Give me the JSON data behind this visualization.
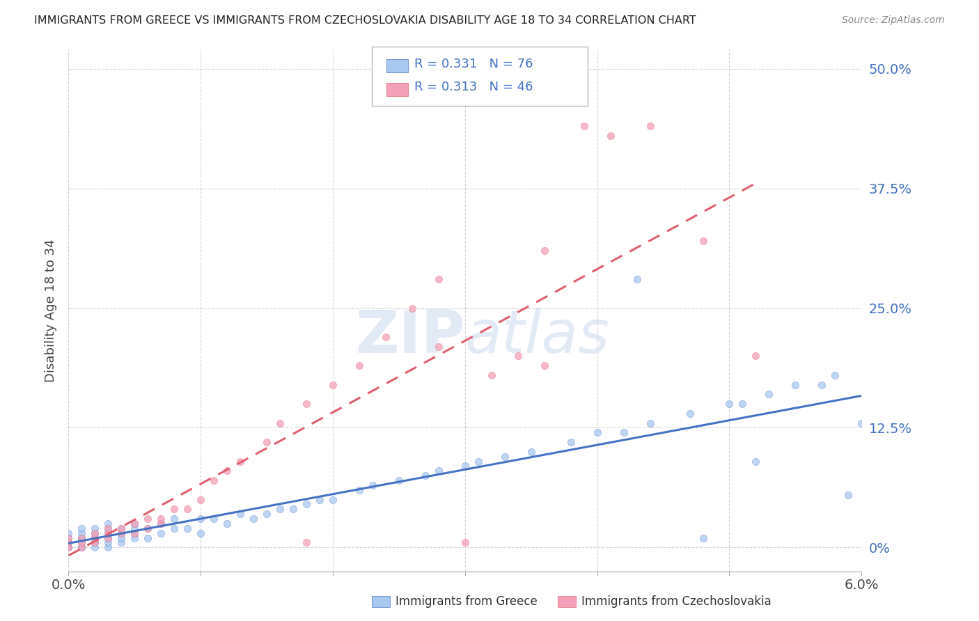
{
  "title": "IMMIGRANTS FROM GREECE VS IMMIGRANTS FROM CZECHOSLOVAKIA DISABILITY AGE 18 TO 34 CORRELATION CHART",
  "source": "Source: ZipAtlas.com",
  "ylabel": "Disability Age 18 to 34",
  "legend_label1": "Immigrants from Greece",
  "legend_label2": "Immigrants from Czechoslovakia",
  "R1": 0.331,
  "N1": 76,
  "R2": 0.313,
  "N2": 46,
  "color_blue": "#A8C8F0",
  "color_pink": "#F4A0B8",
  "color_blue_dark": "#4472C4",
  "color_pink_dark": "#E06070",
  "color_line_blue": "#4472C4",
  "color_line_pink": "#E06070",
  "ytick_labels": [
    "0%",
    "12.5%",
    "25.0%",
    "37.5%",
    "50.0%"
  ],
  "ytick_values": [
    0.0,
    0.125,
    0.25,
    0.375,
    0.5
  ],
  "xtick_values": [
    0.0,
    0.01,
    0.02,
    0.03,
    0.04,
    0.05,
    0.06
  ],
  "xmin": 0.0,
  "xmax": 0.06,
  "ymin": -0.025,
  "ymax": 0.52,
  "background_color": "#FFFFFF",
  "greece_x": [
    0.0,
    0.0,
    0.0,
    0.0,
    0.0,
    0.001,
    0.001,
    0.001,
    0.001,
    0.001,
    0.001,
    0.001,
    0.002,
    0.002,
    0.002,
    0.002,
    0.002,
    0.002,
    0.003,
    0.003,
    0.003,
    0.003,
    0.003,
    0.003,
    0.004,
    0.004,
    0.004,
    0.004,
    0.005,
    0.005,
    0.005,
    0.005,
    0.006,
    0.006,
    0.007,
    0.007,
    0.008,
    0.008,
    0.009,
    0.01,
    0.01,
    0.011,
    0.012,
    0.013,
    0.014,
    0.015,
    0.016,
    0.017,
    0.018,
    0.019,
    0.02,
    0.022,
    0.023,
    0.025,
    0.027,
    0.028,
    0.03,
    0.031,
    0.033,
    0.035,
    0.038,
    0.04,
    0.042,
    0.044,
    0.047,
    0.05,
    0.051,
    0.053,
    0.055,
    0.057,
    0.058,
    0.06,
    0.043,
    0.048,
    0.052,
    0.059
  ],
  "greece_y": [
    0.0,
    0.0,
    0.005,
    0.01,
    0.015,
    0.0,
    0.0,
    0.005,
    0.01,
    0.01,
    0.015,
    0.02,
    0.0,
    0.005,
    0.01,
    0.01,
    0.015,
    0.02,
    0.0,
    0.005,
    0.01,
    0.015,
    0.02,
    0.025,
    0.005,
    0.01,
    0.015,
    0.02,
    0.01,
    0.015,
    0.02,
    0.025,
    0.01,
    0.02,
    0.015,
    0.025,
    0.02,
    0.03,
    0.02,
    0.015,
    0.03,
    0.03,
    0.025,
    0.035,
    0.03,
    0.035,
    0.04,
    0.04,
    0.045,
    0.05,
    0.05,
    0.06,
    0.065,
    0.07,
    0.075,
    0.08,
    0.085,
    0.09,
    0.095,
    0.1,
    0.11,
    0.12,
    0.12,
    0.13,
    0.14,
    0.15,
    0.15,
    0.16,
    0.17,
    0.17,
    0.18,
    0.13,
    0.28,
    0.01,
    0.09,
    0.055
  ],
  "czech_x": [
    0.0,
    0.0,
    0.0,
    0.001,
    0.001,
    0.001,
    0.002,
    0.002,
    0.002,
    0.003,
    0.003,
    0.003,
    0.004,
    0.004,
    0.005,
    0.005,
    0.006,
    0.006,
    0.007,
    0.007,
    0.008,
    0.009,
    0.01,
    0.011,
    0.012,
    0.013,
    0.015,
    0.016,
    0.018,
    0.02,
    0.022,
    0.024,
    0.026,
    0.028,
    0.03,
    0.032,
    0.034,
    0.036,
    0.039,
    0.041,
    0.044,
    0.048,
    0.052,
    0.036,
    0.028,
    0.018
  ],
  "czech_y": [
    0.0,
    0.005,
    0.01,
    0.0,
    0.005,
    0.01,
    0.005,
    0.01,
    0.015,
    0.01,
    0.015,
    0.02,
    0.015,
    0.02,
    0.015,
    0.025,
    0.02,
    0.03,
    0.025,
    0.03,
    0.04,
    0.04,
    0.05,
    0.07,
    0.08,
    0.09,
    0.11,
    0.13,
    0.15,
    0.17,
    0.19,
    0.22,
    0.25,
    0.28,
    0.005,
    0.18,
    0.2,
    0.19,
    0.44,
    0.43,
    0.44,
    0.32,
    0.2,
    0.31,
    0.21,
    0.005
  ]
}
